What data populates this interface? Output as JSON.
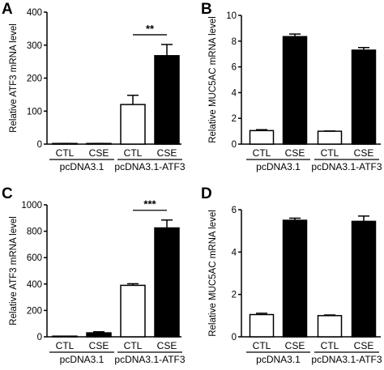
{
  "figure": {
    "colors": {
      "open_bar": "#ffffff",
      "filled_bar": "#000000",
      "axis": "#000000"
    }
  },
  "chart_data": [
    {
      "panel": "A",
      "type": "bar",
      "ylabel": "Relative ATF3 mRNA level",
      "ylim": [
        0,
        400
      ],
      "yticks": [
        0,
        100,
        200,
        300,
        400
      ],
      "categories": [
        "CTL",
        "CSE",
        "CTL",
        "CSE"
      ],
      "groups": [
        {
          "label": "pcDNA3.1",
          "categories": [
            0,
            1
          ]
        },
        {
          "label": "pcDNA3.1-ATF3",
          "categories": [
            2,
            3
          ]
        }
      ],
      "values": [
        1,
        1,
        120,
        268
      ],
      "errors": [
        1,
        1,
        28,
        34
      ],
      "fills": [
        "open",
        "filled",
        "open",
        "filled"
      ],
      "significance": [
        {
          "from": 2,
          "to": 3,
          "label": "**"
        }
      ]
    },
    {
      "panel": "B",
      "type": "bar",
      "ylabel": "Relative MUC5AC  mRNA level",
      "ylim": [
        0,
        10
      ],
      "yticks": [
        0,
        2,
        4,
        6,
        8,
        10
      ],
      "categories": [
        "CTL",
        "CSE",
        "CTL",
        "CSE"
      ],
      "groups": [
        {
          "label": "pcDNA3.1",
          "categories": [
            0,
            1
          ]
        },
        {
          "label": "pcDNA3.1-ATF3",
          "categories": [
            2,
            3
          ]
        }
      ],
      "values": [
        1.05,
        8.35,
        1.0,
        7.3
      ],
      "errors": [
        0.07,
        0.2,
        0.02,
        0.2
      ],
      "fills": [
        "open",
        "filled",
        "open",
        "filled"
      ],
      "significance": []
    },
    {
      "panel": "C",
      "type": "bar",
      "ylabel": "Relative ATF3 mRNA level",
      "ylim": [
        0,
        1000
      ],
      "yticks": [
        0,
        200,
        400,
        600,
        800,
        1000
      ],
      "categories": [
        "CTL",
        "CSE",
        "CTL",
        "CSE"
      ],
      "groups": [
        {
          "label": "pcDNA3.1",
          "categories": [
            0,
            1
          ]
        },
        {
          "label": "pcDNA3.1-ATF3",
          "categories": [
            2,
            3
          ]
        }
      ],
      "values": [
        1,
        30,
        390,
        825
      ],
      "errors": [
        1,
        8,
        12,
        60
      ],
      "fills": [
        "open",
        "filled",
        "open",
        "filled"
      ],
      "significance": [
        {
          "from": 2,
          "to": 3,
          "label": "***"
        }
      ]
    },
    {
      "panel": "D",
      "type": "bar",
      "ylabel": "Relative MUC5AC  mRNA level",
      "ylim": [
        0,
        6
      ],
      "yticks": [
        0,
        2,
        4,
        6
      ],
      "categories": [
        "CTL",
        "CSE",
        "CTL",
        "CSE"
      ],
      "groups": [
        {
          "label": "pcDNA3.1",
          "categories": [
            0,
            1
          ]
        },
        {
          "label": "pcDNA3.1-ATF3",
          "categories": [
            2,
            3
          ]
        }
      ],
      "values": [
        1.05,
        5.5,
        1.0,
        5.45
      ],
      "errors": [
        0.06,
        0.1,
        0.03,
        0.25
      ],
      "fills": [
        "open",
        "filled",
        "open",
        "filled"
      ],
      "significance": []
    }
  ]
}
